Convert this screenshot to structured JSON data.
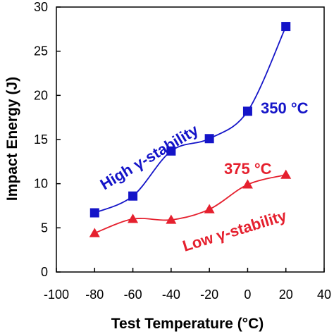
{
  "chart_data": {
    "type": "line",
    "xlabel": "Test Temperature (°C)",
    "ylabel": "Impact Energy (J)",
    "xlim": [
      -100,
      40
    ],
    "ylim": [
      0,
      30
    ],
    "xticks": [
      -100,
      -80,
      -60,
      -40,
      -20,
      0,
      20,
      40
    ],
    "yticks": [
      0,
      5,
      10,
      15,
      20,
      25,
      30
    ],
    "x_tick_labels": [
      "-100",
      "-80",
      "-60",
      "-40",
      "-20",
      "0",
      "20",
      "40"
    ],
    "y_tick_labels": [
      "0",
      "5",
      "10",
      "15",
      "20",
      "25",
      "30"
    ],
    "grid": false,
    "legend": "none",
    "series": [
      {
        "name": "350 °C",
        "marker": "square",
        "color": "#1414c8",
        "x": [
          -80,
          -60,
          -40,
          -20,
          0,
          20
        ],
        "values": [
          6.7,
          8.6,
          13.7,
          15.1,
          18.2,
          27.8
        ]
      },
      {
        "name": "375 °C",
        "marker": "triangle",
        "color": "#e5202e",
        "x": [
          -80,
          -60,
          -40,
          -20,
          0,
          20
        ],
        "values": [
          4.4,
          6.0,
          5.9,
          7.1,
          9.9,
          11.0
        ]
      }
    ],
    "annotations": [
      {
        "text": "High γ-stability",
        "color": "#1414c8"
      },
      {
        "text": "350 °C",
        "color": "#1414c8"
      },
      {
        "text": "375 °C",
        "color": "#e5202e"
      },
      {
        "text": "Low γ-stability",
        "color": "#e5202e"
      }
    ]
  }
}
